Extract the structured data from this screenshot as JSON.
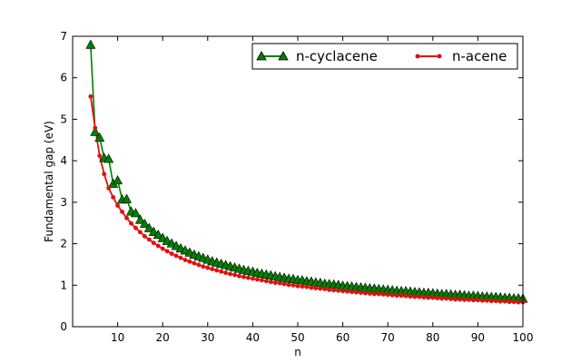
{
  "chart_data": {
    "type": "line",
    "xlabel": "n",
    "ylabel": "Fundamental gap (eV)",
    "xlim": [
      0,
      100
    ],
    "ylim": [
      0,
      7
    ],
    "x_ticks": [
      10,
      20,
      30,
      40,
      50,
      60,
      70,
      80,
      90,
      100
    ],
    "y_ticks": [
      0,
      1,
      2,
      3,
      4,
      5,
      6,
      7
    ],
    "grid": false,
    "legend_position": "top-right",
    "series": [
      {
        "name": "n-cyclacene",
        "color": "#008000",
        "marker": "triangle",
        "x": [
          4,
          5,
          6,
          7,
          8,
          9,
          10,
          11,
          12,
          13,
          14,
          15,
          16,
          17,
          18,
          19,
          20,
          21,
          22,
          23,
          24,
          25,
          26,
          27,
          28,
          29,
          30,
          31,
          32,
          33,
          34,
          35,
          36,
          37,
          38,
          39,
          40,
          41,
          42,
          43,
          44,
          45,
          46,
          47,
          48,
          49,
          50,
          51,
          52,
          53,
          54,
          55,
          56,
          57,
          58,
          59,
          60,
          61,
          62,
          63,
          64,
          65,
          66,
          67,
          68,
          69,
          70,
          71,
          72,
          73,
          74,
          75,
          76,
          77,
          78,
          79,
          80,
          81,
          82,
          83,
          84,
          85,
          86,
          87,
          88,
          89,
          90,
          91,
          92,
          93,
          94,
          95,
          96,
          97,
          98,
          99,
          100
        ],
        "y": [
          6.8,
          4.7,
          4.56,
          4.07,
          4.05,
          3.45,
          3.53,
          3.07,
          3.08,
          2.78,
          2.74,
          2.58,
          2.48,
          2.38,
          2.29,
          2.22,
          2.14,
          2.07,
          2.01,
          1.95,
          1.89,
          1.84,
          1.79,
          1.74,
          1.7,
          1.66,
          1.62,
          1.58,
          1.55,
          1.52,
          1.49,
          1.46,
          1.43,
          1.4,
          1.37,
          1.35,
          1.33,
          1.3,
          1.28,
          1.26,
          1.24,
          1.22,
          1.2,
          1.18,
          1.16,
          1.15,
          1.13,
          1.12,
          1.1,
          1.09,
          1.07,
          1.06,
          1.04,
          1.03,
          1.02,
          1.01,
          0.99,
          0.98,
          0.97,
          0.96,
          0.95,
          0.94,
          0.93,
          0.92,
          0.91,
          0.9,
          0.89,
          0.88,
          0.87,
          0.86,
          0.86,
          0.85,
          0.84,
          0.83,
          0.82,
          0.82,
          0.81,
          0.8,
          0.79,
          0.79,
          0.78,
          0.77,
          0.77,
          0.76,
          0.75,
          0.75,
          0.74,
          0.73,
          0.73,
          0.72,
          0.72,
          0.71,
          0.7,
          0.7,
          0.69,
          0.69,
          0.68
        ]
      },
      {
        "name": "n-acene",
        "color": "#e01010",
        "marker": "circle",
        "x": [
          4,
          5,
          6,
          7,
          8,
          9,
          10,
          11,
          12,
          13,
          14,
          15,
          16,
          17,
          18,
          19,
          20,
          21,
          22,
          23,
          24,
          25,
          26,
          27,
          28,
          29,
          30,
          31,
          32,
          33,
          34,
          35,
          36,
          37,
          38,
          39,
          40,
          41,
          42,
          43,
          44,
          45,
          46,
          47,
          48,
          49,
          50,
          51,
          52,
          53,
          54,
          55,
          56,
          57,
          58,
          59,
          60,
          61,
          62,
          63,
          64,
          65,
          66,
          67,
          68,
          69,
          70,
          71,
          72,
          73,
          74,
          75,
          76,
          77,
          78,
          79,
          80,
          81,
          82,
          83,
          84,
          85,
          86,
          87,
          88,
          89,
          90,
          91,
          92,
          93,
          94,
          95,
          96,
          97,
          98,
          99,
          100
        ],
        "y": [
          5.55,
          4.79,
          4.12,
          3.68,
          3.34,
          3.12,
          2.92,
          2.77,
          2.62,
          2.49,
          2.38,
          2.28,
          2.18,
          2.1,
          2.02,
          1.95,
          1.88,
          1.82,
          1.76,
          1.71,
          1.66,
          1.61,
          1.57,
          1.53,
          1.49,
          1.45,
          1.42,
          1.39,
          1.36,
          1.33,
          1.3,
          1.27,
          1.25,
          1.22,
          1.2,
          1.18,
          1.16,
          1.14,
          1.12,
          1.1,
          1.08,
          1.06,
          1.05,
          1.03,
          1.01,
          1.0,
          0.98,
          0.97,
          0.96,
          0.94,
          0.93,
          0.92,
          0.91,
          0.89,
          0.88,
          0.87,
          0.86,
          0.85,
          0.84,
          0.83,
          0.82,
          0.81,
          0.8,
          0.79,
          0.79,
          0.78,
          0.77,
          0.76,
          0.75,
          0.75,
          0.74,
          0.73,
          0.72,
          0.72,
          0.71,
          0.7,
          0.7,
          0.69,
          0.68,
          0.68,
          0.67,
          0.66,
          0.66,
          0.65,
          0.65,
          0.64,
          0.64,
          0.63,
          0.63,
          0.62,
          0.62,
          0.61,
          0.61,
          0.6,
          0.6,
          0.59,
          0.59
        ]
      }
    ]
  }
}
